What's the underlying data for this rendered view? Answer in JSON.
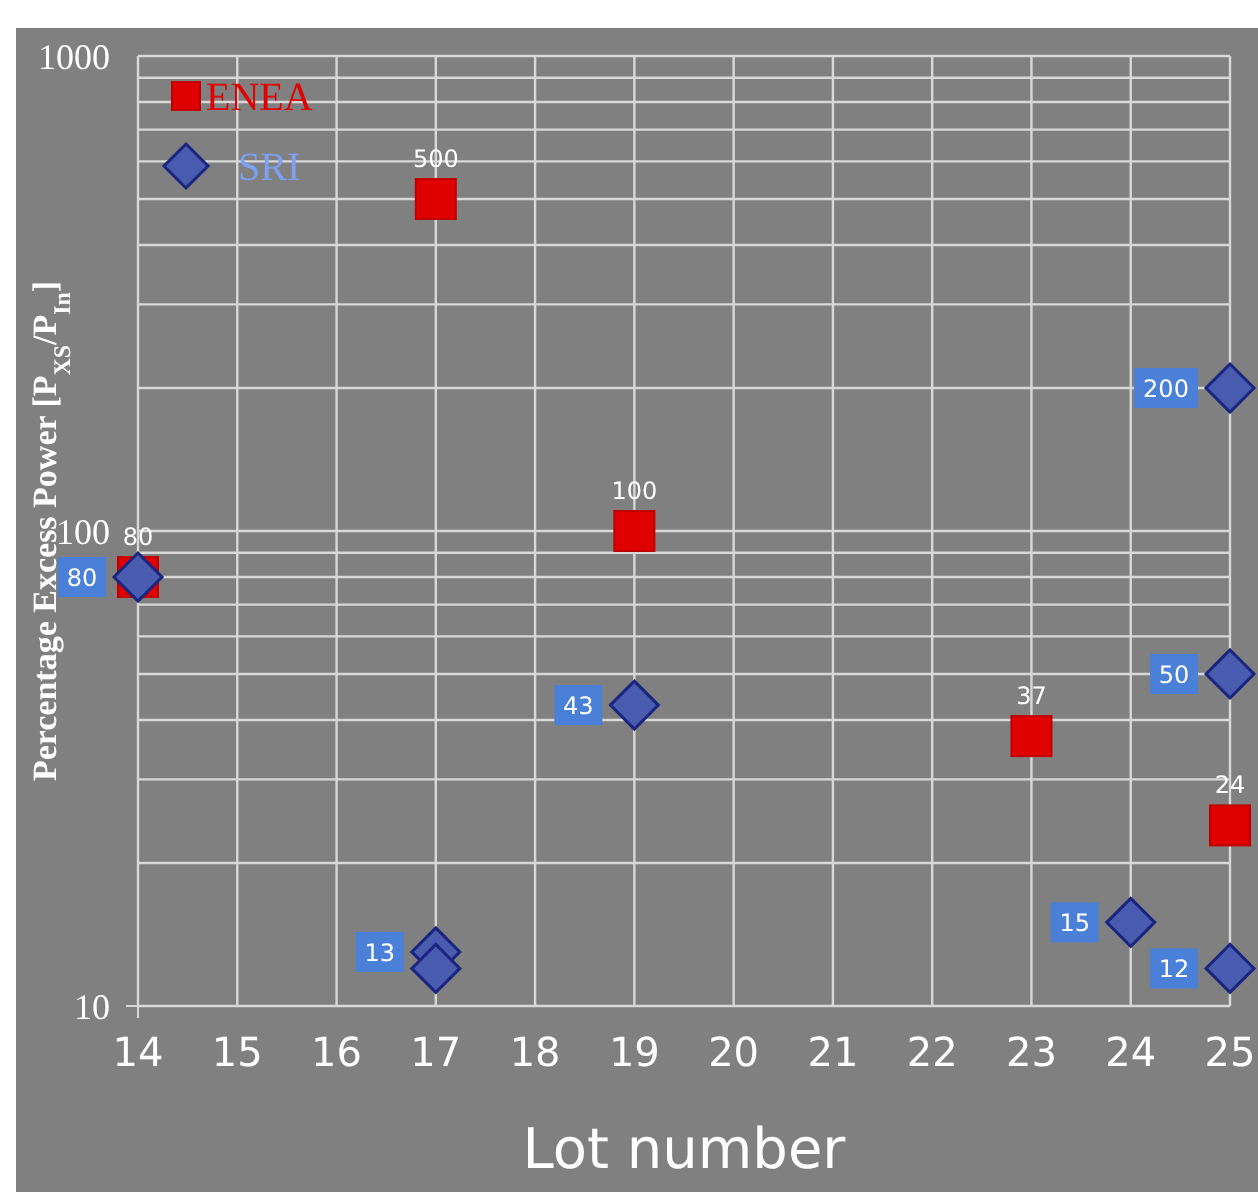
{
  "chart_data": {
    "type": "scatter",
    "xlabel": "Lot number",
    "ylabel": "Percentage Excess Power [P$_{XS}$/P$_{In}$]",
    "log": "y",
    "grid": true,
    "legend": "top left",
    "xlim": [
      14,
      25
    ],
    "xticks": [
      14,
      15,
      16,
      17,
      18,
      19,
      20,
      21,
      22,
      23,
      24,
      25
    ],
    "ylim": [
      10,
      1000
    ],
    "yticks": [
      10,
      {
        "value": 20,
        "label": null
      },
      {
        "value": 30,
        "label": null
      },
      {
        "value": 40,
        "label": null
      },
      {
        "value": 50,
        "label": null
      },
      {
        "value": 60,
        "label": null
      },
      {
        "value": 70,
        "label": null
      },
      {
        "value": 80,
        "label": null
      },
      {
        "value": 90,
        "label": null
      },
      100,
      {
        "value": 200,
        "label": null
      },
      {
        "value": 300,
        "label": null
      },
      {
        "value": 400,
        "label": null
      },
      {
        "value": 500,
        "label": null
      },
      {
        "value": 600,
        "label": null
      },
      {
        "value": 700,
        "label": null
      },
      {
        "value": 800,
        "label": null
      },
      {
        "value": 900,
        "label": null
      },
      1000
    ],
    "series": [
      {
        "name": "ENEA",
        "color": "#e00000",
        "marker": "square",
        "x": [
          14,
          17,
          19,
          23,
          25
        ],
        "values": [
          80,
          500,
          100,
          37,
          24
        ],
        "value_labels": [
          "80",
          "500",
          "100",
          "37",
          "24"
        ]
      },
      {
        "name": "SRI",
        "color": "#4a5cb0",
        "marker": "diamond",
        "x": [
          14,
          17,
          17,
          19,
          24,
          25,
          25,
          25
        ],
        "values": [
          80,
          13,
          12,
          43,
          15,
          200,
          50,
          12
        ],
        "value_labels": [
          "80",
          "13",
          null,
          "43",
          "15",
          "200",
          "50",
          "12"
        ]
      }
    ]
  }
}
